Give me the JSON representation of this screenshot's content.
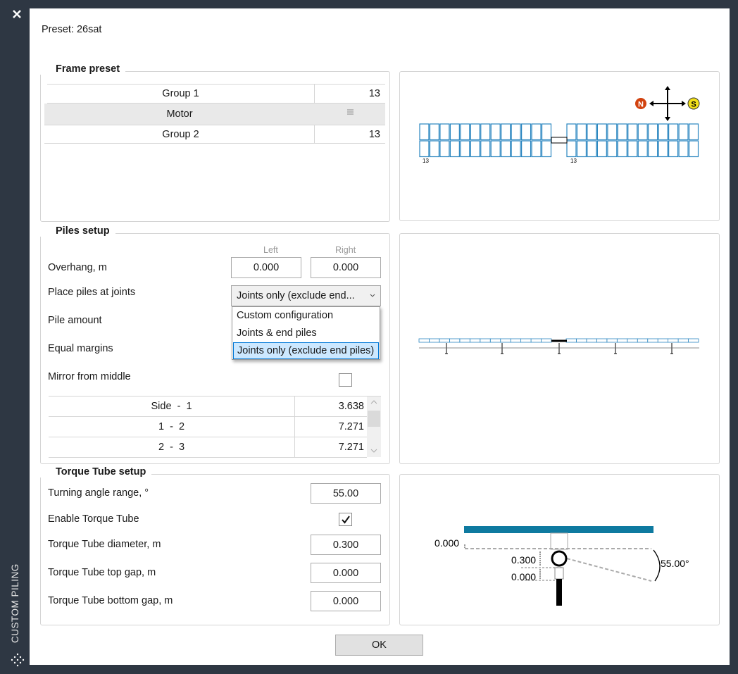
{
  "sidebar": {
    "title": "CUSTOM PILING"
  },
  "preset": "Preset: 26sat",
  "frame_preset": {
    "title": "Frame preset",
    "rows": [
      [
        "Group 1",
        "13"
      ],
      [
        "Motor"
      ],
      [
        "Group 2",
        "13"
      ]
    ]
  },
  "frame_diagram": {
    "north": "N",
    "south": "S",
    "left_count": "13",
    "right_count": "13"
  },
  "piles_setup": {
    "title": "Piles setup",
    "left_header": "Left",
    "right_header": "Right",
    "overhang": {
      "label": "Overhang, m",
      "left": "0.000",
      "right": "0.000"
    },
    "place_piles": {
      "label": "Place piles at joints",
      "selected": "Joints only (exclude end...",
      "options": [
        "Custom configuration",
        "Joints & end piles",
        "Joints only (exclude end piles)"
      ]
    },
    "pile_amount": "Pile amount",
    "equal_margins": "Equal margins",
    "mirror": "Mirror from middle",
    "spacing": [
      [
        "Side  -  1",
        "3.638"
      ],
      [
        "1  -  2",
        "7.271"
      ],
      [
        "2  -  3",
        "7.271"
      ]
    ]
  },
  "torque_setup": {
    "title": "Torque Tube setup",
    "turning_angle": {
      "label": "Turning angle range, °",
      "value": "55.00"
    },
    "enable": {
      "label": "Enable Torque Tube"
    },
    "diameter": {
      "label": "Torque Tube diameter, m",
      "value": "0.300"
    },
    "top_gap": {
      "label": "Torque Tube top gap, m",
      "value": "0.000"
    },
    "bottom_gap": {
      "label": "Torque Tube bottom gap, m",
      "value": "0.000"
    }
  },
  "torque_diagram": {
    "overhang": "0.000",
    "diameter": "0.300",
    "gap": "0.000",
    "angle": "55.00°"
  },
  "ok": "OK"
}
